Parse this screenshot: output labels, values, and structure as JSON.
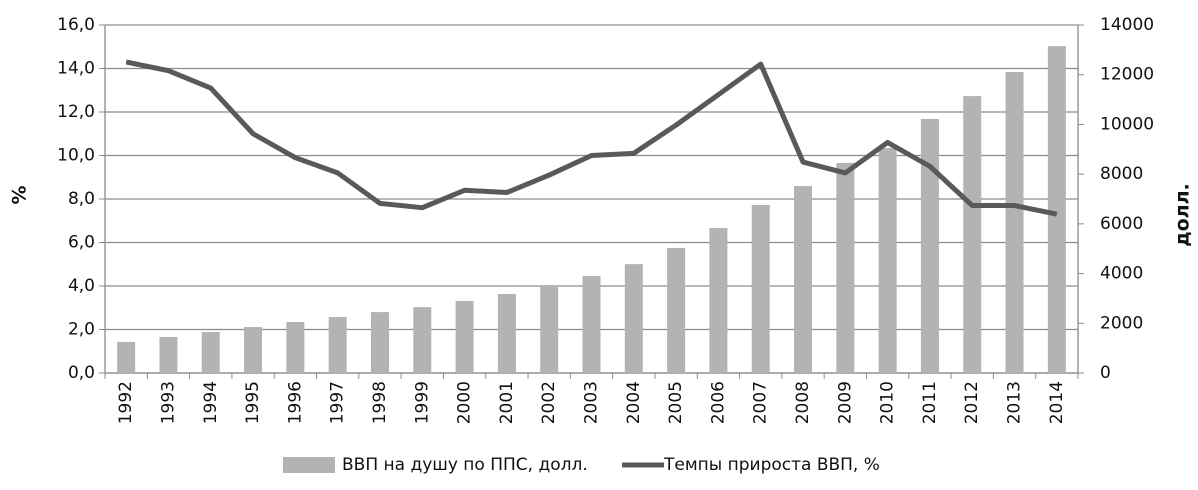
{
  "chart_data": {
    "type": "bar-line",
    "categories": [
      "1992",
      "1993",
      "1994",
      "1995",
      "1996",
      "1997",
      "1998",
      "1999",
      "2000",
      "2001",
      "2002",
      "2003",
      "2004",
      "2005",
      "2006",
      "2007",
      "2008",
      "2009",
      "2010",
      "2011",
      "2012",
      "2013",
      "2014"
    ],
    "y_label": "%",
    "y2_label": "долл.",
    "ylim": [
      0,
      16
    ],
    "yticks": [
      {
        "value": 0,
        "label": "0,0"
      },
      {
        "value": 2,
        "label": "2,0"
      },
      {
        "value": 4,
        "label": "4,0"
      },
      {
        "value": 6,
        "label": "6,0"
      },
      {
        "value": 8,
        "label": "8,0"
      },
      {
        "value": 10,
        "label": "10,0"
      },
      {
        "value": 12,
        "label": "12,0"
      },
      {
        "value": 14,
        "label": "14,0"
      },
      {
        "value": 16,
        "label": "16,0"
      }
    ],
    "y2lim": [
      0,
      14000
    ],
    "y2ticks": [
      0,
      2000,
      4000,
      6000,
      8000,
      10000,
      12000,
      14000
    ],
    "grid": true,
    "series": [
      {
        "name": "ВВП на душу по ППС, долл.",
        "type": "bar",
        "axis": "y2",
        "color": "#b3b3b3",
        "values": [
          1250,
          1450,
          1650,
          1850,
          2050,
          2250,
          2450,
          2650,
          2900,
          3180,
          3500,
          3900,
          4380,
          5030,
          5830,
          6760,
          7520,
          8450,
          9050,
          10220,
          11140,
          12110,
          13150
        ]
      },
      {
        "name": "Темпы прироста ВВП, %",
        "type": "line",
        "axis": "y",
        "color": "#595959",
        "values": [
          14.3,
          13.9,
          13.1,
          11.0,
          9.9,
          9.2,
          7.8,
          7.6,
          8.4,
          8.3,
          9.1,
          10.0,
          10.1,
          11.4,
          12.8,
          14.2,
          9.7,
          9.2,
          10.6,
          9.5,
          7.7,
          7.7,
          7.3
        ]
      }
    ]
  }
}
